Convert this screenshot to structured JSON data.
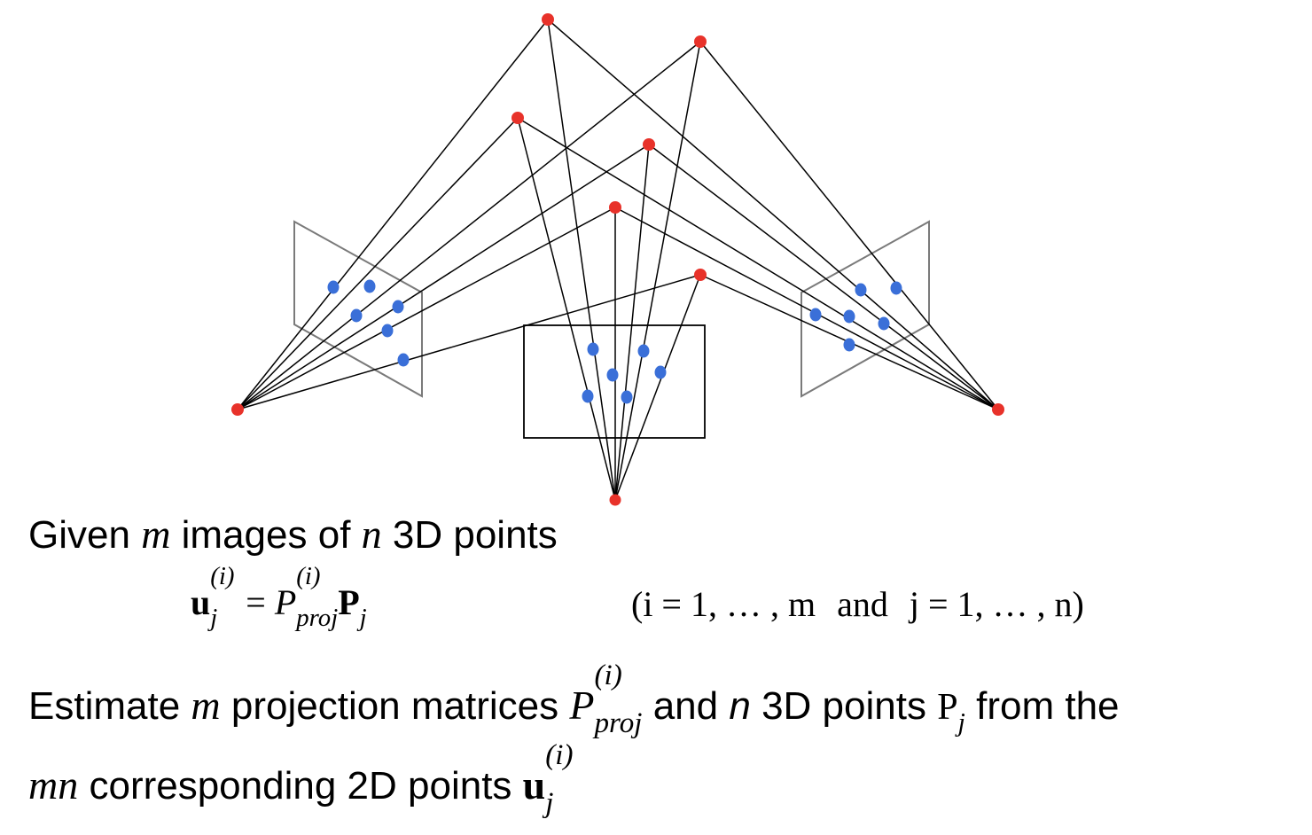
{
  "line1": {
    "given": "Given",
    "m": "m",
    "images_of": "images of",
    "n": "n",
    "points_3d": "3D points"
  },
  "equation": {
    "u": "u",
    "u_sub": "j",
    "u_sup": "(i)",
    "eq": "=",
    "P": "P",
    "P_sup": "(i)",
    "P_sub": "proj",
    "Pj": "P",
    "Pj_sub": "j",
    "range_open": "(i = 1, … , m",
    "and": "and",
    "range_close": "j = 1, … , n)"
  },
  "line3": {
    "estimate": "Estimate",
    "m": "m",
    "projection_matrices": "projection matrices",
    "P": "P",
    "P_sup": "(i)",
    "P_sub": "proj",
    "and": "and",
    "n": "n",
    "points_3d": "3D points",
    "Pj": "P",
    "Pj_sub": "j",
    "from_the": "from the"
  },
  "line4": {
    "mn": "mn",
    "corresponding": "corresponding 2D points",
    "u": "u",
    "u_sub": "j",
    "u_sup": "(i)"
  },
  "colors": {
    "point_3d": "#e8322a",
    "point_2d": "#3a6fd8",
    "ray": "#000000",
    "image_plane_side": "#7a7a7a",
    "image_plane_center": "#000000"
  }
}
